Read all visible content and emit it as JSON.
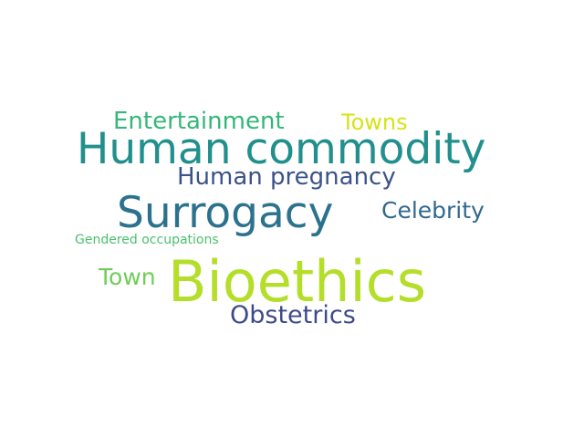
{
  "words": [
    {
      "text": "Bioethics",
      "color": "#b5de2b"
    },
    {
      "text": "Human commodity",
      "color": "#21908d"
    },
    {
      "text": "Surrogacy",
      "color": "#2c728e"
    },
    {
      "text": "Human pregnancy",
      "color": "#3b528b"
    },
    {
      "text": "Entertainment",
      "color": "#35b779"
    },
    {
      "text": "Towns",
      "color": "#d8e219"
    },
    {
      "text": "Celebrity",
      "color": "#31688e"
    },
    {
      "text": "Obstetrics",
      "color": "#3e4a89"
    },
    {
      "text": "Town",
      "color": "#6ece58"
    },
    {
      "text": "Gendered occupations",
      "color": "#4ac16d"
    }
  ]
}
